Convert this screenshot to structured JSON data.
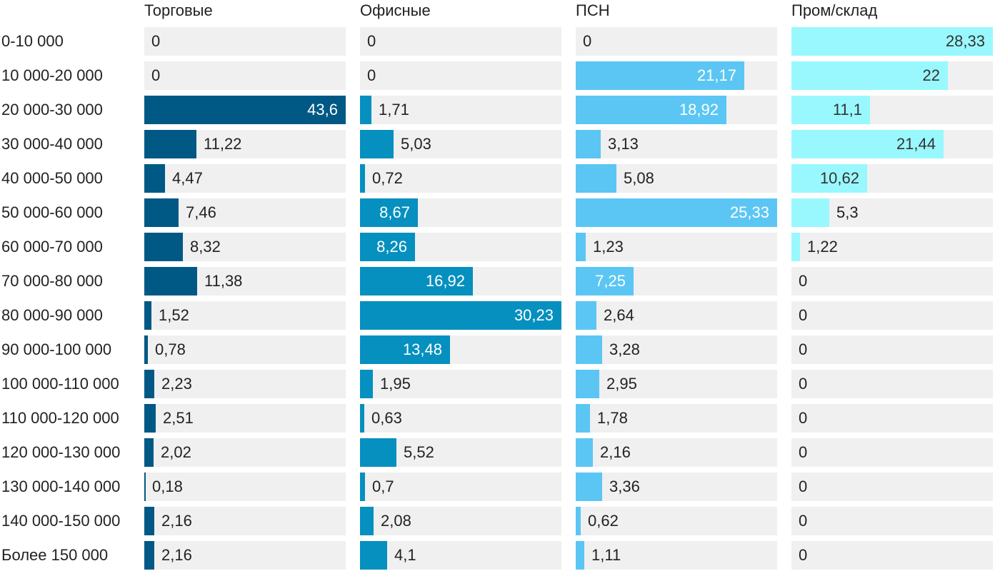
{
  "chart_data": {
    "type": "bar",
    "orientation": "horizontal",
    "layout": "small-multiples",
    "categories": [
      "0-10 000",
      "10 000-20 000",
      "20 000-30 000",
      "30 000-40 000",
      "40 000-50 000",
      "50 000-60 000",
      "60 000-70 000",
      "70 000-80 000",
      "80 000-90 000",
      "90 000-100 000",
      "100 000-110 000",
      "110 000-120 000",
      "120 000-130 000",
      "130 000-140 000",
      "140 000-150 000",
      "Более 150 000"
    ],
    "series": [
      {
        "name": "Торговые",
        "color": "#005885",
        "max": 43.6,
        "values": [
          0,
          0,
          43.6,
          11.22,
          4.47,
          7.46,
          8.32,
          11.38,
          1.52,
          0.78,
          2.23,
          2.51,
          2.02,
          0.18,
          2.16,
          2.16
        ],
        "labels": [
          "0",
          "0",
          "43,6",
          "11,22",
          "4,47",
          "7,46",
          "8,32",
          "11,38",
          "1,52",
          "0,78",
          "2,23",
          "2,51",
          "2,02",
          "0,18",
          "2,16",
          "2,16"
        ]
      },
      {
        "name": "Офисные",
        "color": "#0690bf",
        "max": 30.23,
        "values": [
          0,
          0,
          1.71,
          5.03,
          0.72,
          8.67,
          8.26,
          16.92,
          30.23,
          13.48,
          1.95,
          0.63,
          5.52,
          0.7,
          2.08,
          4.1
        ],
        "labels": [
          "0",
          "0",
          "1,71",
          "5,03",
          "0,72",
          "8,67",
          "8,26",
          "16,92",
          "30,23",
          "13,48",
          "1,95",
          "0,63",
          "5,52",
          "0,7",
          "2,08",
          "4,1"
        ]
      },
      {
        "name": "ПСН",
        "color": "#5bc6f4",
        "max": 25.33,
        "values": [
          0,
          21.17,
          18.92,
          3.13,
          5.08,
          25.33,
          1.23,
          7.25,
          2.64,
          3.28,
          2.95,
          1.78,
          2.16,
          3.36,
          0.62,
          1.11
        ],
        "labels": [
          "0",
          "21,17",
          "18,92",
          "3,13",
          "5,08",
          "25,33",
          "1,23",
          "7,25",
          "2,64",
          "3,28",
          "2,95",
          "1,78",
          "2,16",
          "3,36",
          "0,62",
          "1,11"
        ]
      },
      {
        "name": "Пром/склад",
        "color": "#99f8fd",
        "max": 28.33,
        "values": [
          28.33,
          22,
          11.1,
          21.44,
          10.62,
          5.3,
          1.22,
          0,
          0,
          0,
          0,
          0,
          0,
          0,
          0,
          0
        ],
        "labels": [
          "28,33",
          "22",
          "11,1",
          "21,44",
          "10,62",
          "5,3",
          "1,22",
          "0",
          "0",
          "0",
          "0",
          "0",
          "0",
          "0",
          "0",
          "0"
        ]
      }
    ]
  }
}
